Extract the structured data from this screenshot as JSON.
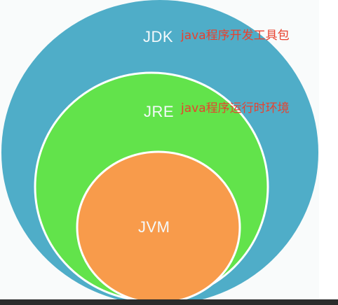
{
  "diagram": {
    "jdk": {
      "label": "JDK",
      "description": "java程序开发工具包",
      "color": "#4fadc8"
    },
    "jre": {
      "label": "JRE",
      "description": "java程序运行时环境",
      "color": "#62e34b"
    },
    "jvm": {
      "label": "JVM",
      "color": "#f89b4b"
    }
  }
}
